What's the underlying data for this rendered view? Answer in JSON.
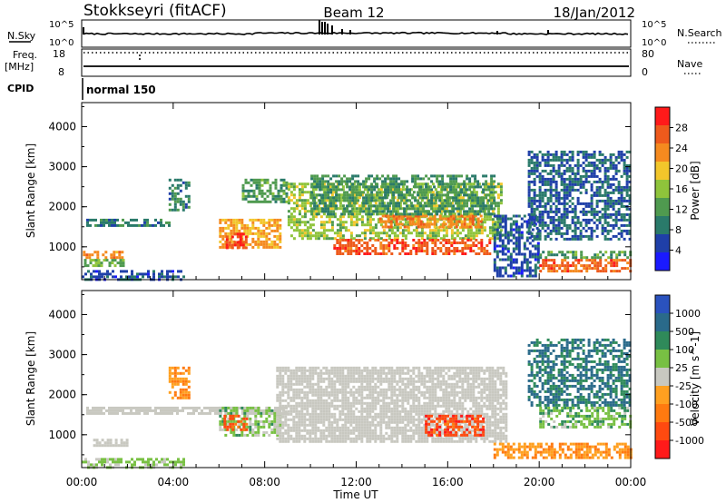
{
  "header": {
    "station": "Stokkseyri (fitACF)",
    "beam": "Beam 12",
    "date": "18/Jan/2012"
  },
  "top_panels": {
    "nsky_label": "N.Sky",
    "nsky_ticks": [
      "10^5",
      "10^0"
    ],
    "nsearch_label": "N.Search",
    "nsearch_ticks": [
      "10^5",
      "10^0"
    ],
    "freq_label": "Freq.",
    "freq_unit": "[MHz]",
    "freq_ticks": [
      "18",
      "8"
    ],
    "nave_label": "Nave",
    "nave_ticks": [
      "80",
      "0"
    ],
    "cpid_label": "CPID",
    "cpid_value": "normal 150"
  },
  "x_axis": {
    "label": "Time UT",
    "ticks": [
      "00:00",
      "04:00",
      "08:00",
      "12:00",
      "16:00",
      "20:00",
      "00:00"
    ]
  },
  "colors": {
    "power_scale": [
      "#1a1aff",
      "#1f3fa8",
      "#2a7a6a",
      "#4f9a4f",
      "#8fc43b",
      "#f2c62b",
      "#f58a1f",
      "#ee5a1c",
      "#ff1a1a"
    ],
    "velocity_scale": [
      "#2a52be",
      "#2a6a8a",
      "#2f8a5a",
      "#78c043",
      "#c8c8c0",
      "#ffa020",
      "#ff7a10",
      "#ff4a10",
      "#ff1a1a"
    ],
    "ground_scatter": "#c8c8c0"
  },
  "chart_data": [
    {
      "type": "heatmap",
      "title": "",
      "xlabel": "",
      "ylabel": "Slant Range [km]",
      "xlim": [
        0,
        24
      ],
      "ylim": [
        180,
        4600
      ],
      "yticks": [
        "1000",
        "2000",
        "3000",
        "4000"
      ],
      "colorbar": {
        "label": "Power [dB]",
        "tick_labels": [
          "28",
          "24",
          "20",
          "16",
          "12",
          "8",
          "4"
        ],
        "range": [
          0,
          32
        ]
      },
      "regions": [
        {
          "t0": 0.05,
          "t1": 1.8,
          "r0": 700,
          "r1": 900,
          "value": 24
        },
        {
          "t0": 0.1,
          "t1": 1.9,
          "r0": 500,
          "r1": 700,
          "value": 14
        },
        {
          "t0": 0.0,
          "t1": 4.5,
          "r0": 200,
          "r1": 420,
          "value": 6
        },
        {
          "t0": 0.2,
          "t1": 4.0,
          "r0": 1500,
          "r1": 1700,
          "value": 9
        },
        {
          "t0": 3.8,
          "t1": 4.7,
          "r0": 1900,
          "r1": 2700,
          "value": 9
        },
        {
          "t0": 6.0,
          "t1": 8.7,
          "r0": 1000,
          "r1": 1700,
          "value": 22
        },
        {
          "t0": 6.3,
          "t1": 7.2,
          "r0": 1000,
          "r1": 1350,
          "value": 28
        },
        {
          "t0": 7.0,
          "t1": 9.0,
          "r0": 2100,
          "r1": 2700,
          "value": 12
        },
        {
          "t0": 9.0,
          "t1": 18.3,
          "r0": 1200,
          "r1": 2600,
          "value": 16
        },
        {
          "t0": 11.0,
          "t1": 17.8,
          "r0": 850,
          "r1": 1200,
          "value": 27
        },
        {
          "t0": 13.0,
          "t1": 17.5,
          "r0": 1500,
          "r1": 1800,
          "value": 24
        },
        {
          "t0": 10.0,
          "t1": 18.0,
          "r0": 1800,
          "r1": 2800,
          "value": 11
        },
        {
          "t0": 18.0,
          "t1": 20.0,
          "r0": 300,
          "r1": 1800,
          "value": 6
        },
        {
          "t0": 20.0,
          "t1": 24.0,
          "r0": 400,
          "r1": 700,
          "value": 26
        },
        {
          "t0": 20.0,
          "t1": 24.0,
          "r0": 700,
          "r1": 900,
          "value": 12
        },
        {
          "t0": 19.5,
          "t1": 24.0,
          "r0": 1200,
          "r1": 3400,
          "value": 7
        }
      ]
    },
    {
      "type": "heatmap",
      "title": "",
      "xlabel": "Time UT",
      "ylabel": "Slant Range [km]",
      "xlim": [
        0,
        24
      ],
      "ylim": [
        180,
        4600
      ],
      "yticks": [
        "1000",
        "2000",
        "3000",
        "4000"
      ],
      "colorbar": {
        "label": "Velocity [m s^-1]",
        "tick_labels": [
          "1000",
          "500",
          "100",
          "25",
          "-25",
          "-100",
          "-500",
          "-1000"
        ],
        "range": [
          -1000,
          1000
        ]
      },
      "regions": [
        {
          "t0": 0.5,
          "t1": 2.0,
          "r0": 700,
          "r1": 900,
          "value": 0,
          "ground_scatter": true
        },
        {
          "t0": 0.0,
          "t1": 4.5,
          "r0": 200,
          "r1": 420,
          "value": 150
        },
        {
          "t0": 0.2,
          "t1": 9.0,
          "r0": 1500,
          "r1": 1700,
          "value": 0,
          "ground_scatter": true
        },
        {
          "t0": 3.8,
          "t1": 4.7,
          "r0": 1900,
          "r1": 2700,
          "value": -300
        },
        {
          "t0": 6.0,
          "t1": 8.7,
          "r0": 1000,
          "r1": 1700,
          "value": 200
        },
        {
          "t0": 6.2,
          "t1": 7.2,
          "r0": 1100,
          "r1": 1500,
          "value": -600
        },
        {
          "t0": 8.5,
          "t1": 18.5,
          "r0": 800,
          "r1": 2700,
          "value": 0,
          "ground_scatter": true
        },
        {
          "t0": 15.0,
          "t1": 17.5,
          "r0": 1000,
          "r1": 1500,
          "value": -700
        },
        {
          "t0": 18.0,
          "t1": 24.0,
          "r0": 450,
          "r1": 800,
          "value": -300
        },
        {
          "t0": 20.0,
          "t1": 24.0,
          "r0": 1200,
          "r1": 1700,
          "value": 250
        },
        {
          "t0": 19.5,
          "t1": 24.0,
          "r0": 1700,
          "r1": 3400,
          "value": 600
        }
      ]
    }
  ]
}
